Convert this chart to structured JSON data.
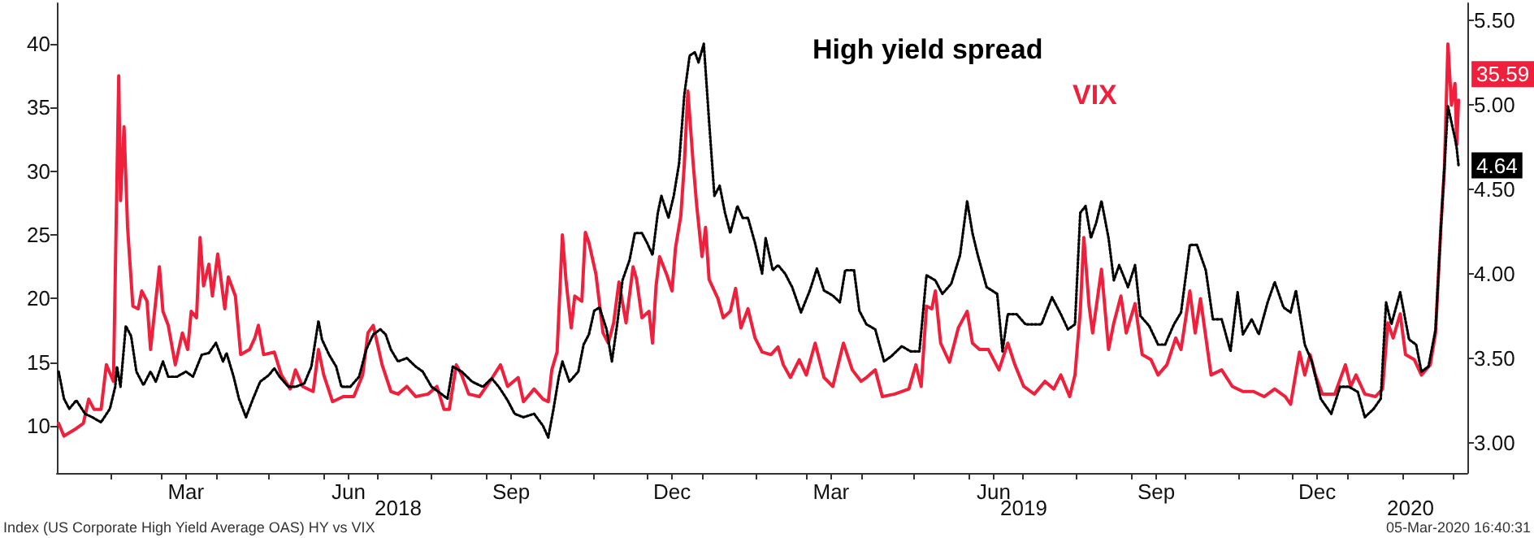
{
  "chart_data": {
    "type": "line",
    "xlim": [
      "2018-01-01",
      "2020-03-09"
    ],
    "xticks": [
      {
        "value": "2018-02-01",
        "label": null
      },
      {
        "value": "2018-03-01",
        "label": null
      },
      {
        "value": "2018-03-15",
        "label": "Mar"
      },
      {
        "value": "2018-04-01",
        "label": null
      },
      {
        "value": "2018-05-01",
        "label": null
      },
      {
        "value": "2018-06-01",
        "label": null
      },
      {
        "value": "2018-06-15",
        "label": "Jun"
      },
      {
        "value": "2018-07-01",
        "label": null
      },
      {
        "value": "2018-08-01",
        "label": null
      },
      {
        "value": "2018-09-01",
        "label": null
      },
      {
        "value": "2018-09-15",
        "label": "Sep"
      },
      {
        "value": "2018-10-01",
        "label": null
      },
      {
        "value": "2018-11-01",
        "label": null
      },
      {
        "value": "2018-12-01",
        "label": null
      },
      {
        "value": "2018-12-15",
        "label": "Dec"
      },
      {
        "value": "2019-01-01",
        "label": null
      },
      {
        "value": "2019-02-01",
        "label": null
      },
      {
        "value": "2019-03-01",
        "label": null
      },
      {
        "value": "2019-03-15",
        "label": "Mar"
      },
      {
        "value": "2019-04-01",
        "label": null
      },
      {
        "value": "2019-05-01",
        "label": null
      },
      {
        "value": "2019-06-01",
        "label": null
      },
      {
        "value": "2019-06-15",
        "label": "Jun"
      },
      {
        "value": "2019-07-01",
        "label": null
      },
      {
        "value": "2019-08-01",
        "label": null
      },
      {
        "value": "2019-09-01",
        "label": null
      },
      {
        "value": "2019-09-15",
        "label": "Sep"
      },
      {
        "value": "2019-10-01",
        "label": null
      },
      {
        "value": "2019-11-01",
        "label": null
      },
      {
        "value": "2019-12-01",
        "label": null
      },
      {
        "value": "2019-12-15",
        "label": "Dec"
      },
      {
        "value": "2020-01-01",
        "label": null
      },
      {
        "value": "2020-02-01",
        "label": null
      },
      {
        "value": "2020-03-01",
        "label": null
      }
    ],
    "ylim": [
      6.3,
      43.2
    ],
    "yticks": [
      10,
      15,
      20,
      25,
      30,
      35,
      40
    ],
    "y2lim": [
      2.82,
      5.6
    ],
    "y2ticks": [
      {
        "value": 3,
        "label": "3.00"
      },
      {
        "value": 3.5,
        "label": "3.50"
      },
      {
        "value": 4,
        "label": "4.00"
      },
      {
        "value": 4.5,
        "label": "4.50"
      },
      {
        "value": 5,
        "label": "5.00"
      },
      {
        "value": 5.5,
        "label": "5.50"
      }
    ],
    "marker": "none",
    "annotations": [
      "2018",
      "2019",
      "2020",
      "Index (US Corporate High Yield Average OAS) HY vs VIX",
      "05-Mar-2020 16:40:31"
    ],
    "series": [
      {
        "name": "High yield spread",
        "color": "#000000",
        "axis": "y2",
        "line_style": "dotted",
        "x": [
          "2018-01-02",
          "2018-01-05",
          "2018-01-08",
          "2018-01-12",
          "2018-01-17",
          "2018-01-21",
          "2018-01-26",
          "2018-01-31",
          "2018-02-03",
          "2018-02-04",
          "2018-02-06",
          "2018-02-09",
          "2018-02-12",
          "2018-02-15",
          "2018-02-19",
          "2018-02-23",
          "2018-02-26",
          "2018-03-02",
          "2018-03-05",
          "2018-03-10",
          "2018-03-15",
          "2018-03-19",
          "2018-03-24",
          "2018-03-28",
          "2018-04-01",
          "2018-04-05",
          "2018-04-07",
          "2018-04-11",
          "2018-04-14",
          "2018-04-18",
          "2018-04-22",
          "2018-04-26",
          "2018-05-01",
          "2018-05-04",
          "2018-05-07",
          "2018-05-12",
          "2018-05-16",
          "2018-05-21",
          "2018-05-25",
          "2018-05-29",
          "2018-05-31",
          "2018-06-04",
          "2018-06-08",
          "2018-06-11",
          "2018-06-16",
          "2018-06-21",
          "2018-06-25",
          "2018-06-29",
          "2018-07-03",
          "2018-07-06",
          "2018-07-09",
          "2018-07-13",
          "2018-07-18",
          "2018-07-23",
          "2018-07-27",
          "2018-08-01",
          "2018-08-05",
          "2018-08-10",
          "2018-08-13",
          "2018-08-18",
          "2018-08-24",
          "2018-08-30",
          "2018-09-04",
          "2018-09-08",
          "2018-09-13",
          "2018-09-17",
          "2018-09-22",
          "2018-09-28",
          "2018-10-03",
          "2018-10-06",
          "2018-10-09",
          "2018-10-12",
          "2018-10-14",
          "2018-10-18",
          "2018-10-23",
          "2018-10-26",
          "2018-10-29",
          "2018-11-01",
          "2018-11-04",
          "2018-11-08",
          "2018-11-11",
          "2018-11-14",
          "2018-11-17",
          "2018-11-21",
          "2018-11-24",
          "2018-11-28",
          "2018-12-01",
          "2018-12-04",
          "2018-12-07",
          "2018-12-09",
          "2018-12-13",
          "2018-12-16",
          "2018-12-19",
          "2018-12-22",
          "2018-12-25",
          "2018-12-28",
          "2018-12-30",
          "2019-01-02",
          "2019-01-05",
          "2019-01-08",
          "2019-01-11",
          "2019-01-14",
          "2019-01-17",
          "2019-01-21",
          "2019-01-24",
          "2019-01-27",
          "2019-01-31",
          "2019-02-04",
          "2019-02-06",
          "2019-02-10",
          "2019-02-13",
          "2019-02-17",
          "2019-02-21",
          "2019-02-26",
          "2019-03-03",
          "2019-03-07",
          "2019-03-11",
          "2019-03-16",
          "2019-03-20",
          "2019-03-23",
          "2019-03-28",
          "2019-03-31",
          "2019-04-04",
          "2019-04-09",
          "2019-04-14",
          "2019-04-18",
          "2019-04-24",
          "2019-04-29",
          "2019-05-04",
          "2019-05-08",
          "2019-05-13",
          "2019-05-17",
          "2019-05-22",
          "2019-05-27",
          "2019-05-31",
          "2019-06-03",
          "2019-06-06",
          "2019-06-11",
          "2019-06-17",
          "2019-06-20",
          "2019-06-23",
          "2019-06-28",
          "2019-07-03",
          "2019-07-07",
          "2019-07-12",
          "2019-07-18",
          "2019-07-23",
          "2019-07-27",
          "2019-07-31",
          "2019-08-03",
          "2019-08-06",
          "2019-08-09",
          "2019-08-12",
          "2019-08-15",
          "2019-08-19",
          "2019-08-22",
          "2019-08-25",
          "2019-08-30",
          "2019-09-03",
          "2019-09-06",
          "2019-09-11",
          "2019-09-16",
          "2019-09-20",
          "2019-09-25",
          "2019-09-29",
          "2019-10-04",
          "2019-10-08",
          "2019-10-13",
          "2019-10-17",
          "2019-10-22",
          "2019-10-27",
          "2019-10-31",
          "2019-11-03",
          "2019-11-08",
          "2019-11-12",
          "2019-11-17",
          "2019-11-21",
          "2019-11-26",
          "2019-11-30",
          "2019-12-03",
          "2019-12-08",
          "2019-12-12",
          "2019-12-17",
          "2019-12-23",
          "2019-12-28",
          "2020-01-02",
          "2020-01-07",
          "2020-01-11",
          "2020-01-16",
          "2020-01-20",
          "2020-01-23",
          "2020-01-26",
          "2020-01-31",
          "2020-02-05",
          "2020-02-09",
          "2020-02-12",
          "2020-02-16",
          "2020-02-20",
          "2020-02-23",
          "2020-02-27",
          "2020-03-02",
          "2020-03-03",
          "2020-03-04"
        ],
        "values": [
          3.42,
          3.26,
          3.2,
          3.25,
          3.17,
          3.15,
          3.12,
          3.2,
          3.33,
          3.45,
          3.33,
          3.69,
          3.63,
          3.42,
          3.34,
          3.42,
          3.36,
          3.48,
          3.39,
          3.39,
          3.42,
          3.39,
          3.52,
          3.53,
          3.59,
          3.48,
          3.53,
          3.39,
          3.26,
          3.15,
          3.26,
          3.36,
          3.4,
          3.44,
          3.39,
          3.33,
          3.33,
          3.35,
          3.45,
          3.72,
          3.61,
          3.52,
          3.45,
          3.33,
          3.33,
          3.39,
          3.55,
          3.64,
          3.67,
          3.64,
          3.55,
          3.48,
          3.5,
          3.45,
          3.42,
          3.33,
          3.3,
          3.26,
          3.45,
          3.42,
          3.36,
          3.33,
          3.38,
          3.33,
          3.25,
          3.17,
          3.15,
          3.17,
          3.1,
          3.03,
          3.2,
          3.39,
          3.48,
          3.36,
          3.42,
          3.58,
          3.64,
          3.78,
          3.8,
          3.67,
          3.48,
          3.7,
          3.96,
          4.08,
          4.24,
          4.24,
          4.18,
          4.11,
          4.36,
          4.46,
          4.33,
          4.46,
          4.65,
          5.06,
          5.29,
          5.31,
          5.25,
          5.36,
          4.9,
          4.46,
          4.52,
          4.36,
          4.24,
          4.4,
          4.33,
          4.33,
          4.18,
          4.0,
          4.21,
          4.02,
          4.05,
          4.0,
          3.92,
          3.77,
          3.9,
          4.03,
          3.9,
          3.87,
          3.83,
          4.02,
          4.02,
          3.78,
          3.7,
          3.67,
          3.48,
          3.51,
          3.57,
          3.54,
          3.54,
          3.99,
          3.96,
          3.88,
          3.94,
          4.11,
          4.43,
          4.24,
          4.11,
          3.92,
          3.88,
          3.54,
          3.76,
          3.76,
          3.7,
          3.7,
          3.7,
          3.86,
          3.76,
          3.67,
          3.7,
          4.36,
          4.4,
          4.21,
          4.3,
          4.43,
          4.21,
          3.96,
          4.05,
          3.92,
          4.05,
          3.75,
          3.69,
          3.58,
          3.58,
          3.7,
          3.77,
          4.17,
          4.17,
          4.02,
          3.73,
          3.73,
          3.54,
          3.89,
          3.64,
          3.73,
          3.64,
          3.83,
          3.95,
          3.8,
          3.77,
          3.9,
          3.58,
          3.48,
          3.26,
          3.17,
          3.33,
          3.33,
          3.3,
          3.15,
          3.2,
          3.26,
          3.83,
          3.7,
          3.89,
          3.61,
          3.58,
          3.42,
          3.45,
          3.67,
          4.27,
          4.99,
          4.8,
          4.74,
          4.64
        ],
        "value_labels": [
          null,
          null,
          null,
          null,
          null,
          null,
          null,
          null,
          null,
          null,
          null,
          null,
          null,
          null,
          null,
          null,
          null,
          null,
          null,
          null,
          null,
          null,
          null,
          null,
          null,
          null,
          null,
          null,
          null,
          null,
          null,
          null,
          null,
          null,
          null,
          null,
          null,
          null,
          null,
          null,
          null,
          null,
          null,
          null,
          null,
          null,
          null,
          null,
          null,
          null,
          null,
          null,
          null,
          null,
          null,
          null,
          null,
          null,
          null,
          null,
          null,
          null,
          null,
          null,
          null,
          null,
          null,
          null,
          null,
          null,
          null,
          null,
          null,
          null,
          null,
          null,
          null,
          null,
          null,
          null,
          null,
          null,
          null,
          null,
          null,
          null,
          null,
          null,
          null,
          null,
          null,
          null,
          null,
          null,
          null,
          null,
          null,
          null,
          null,
          null,
          null,
          null,
          null,
          null,
          null,
          null,
          null,
          null,
          null,
          null,
          null,
          null,
          null,
          null,
          null,
          null,
          null,
          null,
          null,
          null,
          null,
          null,
          null,
          null,
          null,
          null,
          null,
          null,
          null,
          null,
          null,
          null,
          null,
          null,
          null,
          null,
          null,
          null,
          null,
          null,
          null,
          null,
          null,
          null,
          null,
          null,
          null,
          null,
          null,
          null,
          null,
          null,
          null,
          null,
          null,
          null,
          null,
          null,
          null,
          null,
          null,
          null,
          null,
          null,
          null,
          null,
          null,
          null,
          null,
          null,
          null,
          null,
          null,
          null,
          null,
          null,
          null,
          null,
          null,
          null,
          null,
          null,
          null,
          null,
          null,
          null,
          null,
          null,
          null,
          null,
          null,
          null,
          null,
          null,
          null,
          null,
          null,
          null,
          null,
          null,
          null,
          null,
          "4.64"
        ]
      },
      {
        "name": "VIX",
        "color": "#f0203c",
        "axis": "y",
        "line_style": "solid",
        "x": [
          "2018-01-02",
          "2018-01-05",
          "2018-01-12",
          "2018-01-16",
          "2018-01-19",
          "2018-01-22",
          "2018-01-26",
          "2018-01-29",
          "2018-02-02",
          "2018-02-05",
          "2018-02-06",
          "2018-02-08",
          "2018-02-10",
          "2018-02-13",
          "2018-02-16",
          "2018-02-18",
          "2018-02-21",
          "2018-02-23",
          "2018-02-28",
          "2018-03-02",
          "2018-03-05",
          "2018-03-09",
          "2018-03-13",
          "2018-03-16",
          "2018-03-18",
          "2018-03-21",
          "2018-03-23",
          "2018-03-25",
          "2018-03-28",
          "2018-03-30",
          "2018-04-02",
          "2018-04-06",
          "2018-04-08",
          "2018-04-12",
          "2018-04-15",
          "2018-04-20",
          "2018-04-23",
          "2018-04-25",
          "2018-04-28",
          "2018-05-04",
          "2018-05-08",
          "2018-05-13",
          "2018-05-16",
          "2018-05-20",
          "2018-05-26",
          "2018-05-29",
          "2018-06-01",
          "2018-06-06",
          "2018-06-12",
          "2018-06-18",
          "2018-06-23",
          "2018-06-26",
          "2018-06-29",
          "2018-07-04",
          "2018-07-09",
          "2018-07-13",
          "2018-07-18",
          "2018-07-23",
          "2018-07-30",
          "2018-08-04",
          "2018-08-08",
          "2018-08-11",
          "2018-08-15",
          "2018-08-18",
          "2018-08-22",
          "2018-08-28",
          "2018-09-03",
          "2018-09-09",
          "2018-09-13",
          "2018-09-19",
          "2018-09-22",
          "2018-09-28",
          "2018-10-03",
          "2018-10-06",
          "2018-10-08",
          "2018-10-11",
          "2018-10-14",
          "2018-10-16",
          "2018-10-19",
          "2018-10-21",
          "2018-10-25",
          "2018-10-27",
          "2018-10-29",
          "2018-11-02",
          "2018-11-06",
          "2018-11-09",
          "2018-11-12",
          "2018-11-15",
          "2018-11-19",
          "2018-11-23",
          "2018-11-25",
          "2018-11-28",
          "2018-12-02",
          "2018-12-04",
          "2018-12-06",
          "2018-12-08",
          "2018-12-12",
          "2018-12-15",
          "2018-12-17",
          "2018-12-20",
          "2018-12-22",
          "2018-12-24",
          "2018-12-27",
          "2018-12-29",
          "2019-01-01",
          "2019-01-03",
          "2019-01-05",
          "2019-01-10",
          "2019-01-13",
          "2019-01-17",
          "2019-01-20",
          "2019-01-23",
          "2019-01-27",
          "2019-01-31",
          "2019-02-04",
          "2019-02-09",
          "2019-02-13",
          "2019-02-16",
          "2019-02-20",
          "2019-02-25",
          "2019-03-01",
          "2019-03-06",
          "2019-03-11",
          "2019-03-16",
          "2019-03-22",
          "2019-03-27",
          "2019-04-01",
          "2019-04-04",
          "2019-04-09",
          "2019-04-13",
          "2019-04-20",
          "2019-04-28",
          "2019-05-02",
          "2019-05-05",
          "2019-05-08",
          "2019-05-11",
          "2019-05-13",
          "2019-05-16",
          "2019-05-21",
          "2019-05-26",
          "2019-05-31",
          "2019-06-03",
          "2019-06-07",
          "2019-06-12",
          "2019-06-18",
          "2019-06-23",
          "2019-06-27",
          "2019-07-02",
          "2019-07-08",
          "2019-07-14",
          "2019-07-19",
          "2019-07-23",
          "2019-07-28",
          "2019-07-31",
          "2019-08-03",
          "2019-08-05",
          "2019-08-08",
          "2019-08-10",
          "2019-08-15",
          "2019-08-19",
          "2019-08-22",
          "2019-08-26",
          "2019-08-29",
          "2019-09-03",
          "2019-09-07",
          "2019-09-12",
          "2019-09-16",
          "2019-09-21",
          "2019-09-26",
          "2019-09-29",
          "2019-10-04",
          "2019-10-07",
          "2019-10-10",
          "2019-10-16",
          "2019-10-22",
          "2019-10-28",
          "2019-11-03",
          "2019-11-09",
          "2019-11-15",
          "2019-11-21",
          "2019-11-27",
          "2019-11-30",
          "2019-12-05",
          "2019-12-08",
          "2019-12-11",
          "2019-12-14",
          "2019-12-18",
          "2019-12-25",
          "2019-12-31",
          "2020-01-03",
          "2020-01-06",
          "2020-01-11",
          "2020-01-17",
          "2020-01-21",
          "2020-01-24",
          "2020-01-27",
          "2020-01-31",
          "2020-02-03",
          "2020-02-08",
          "2020-02-12",
          "2020-02-17",
          "2020-02-20",
          "2020-02-23",
          "2020-02-25",
          "2020-02-27",
          "2020-02-29",
          "2020-03-02",
          "2020-03-03",
          "2020-03-04"
        ],
        "values": [
          10.2,
          9.2,
          9.8,
          10.2,
          12.1,
          11.3,
          11.3,
          14.8,
          13.5,
          37.5,
          27.7,
          33.5,
          25.6,
          19.4,
          19.2,
          20.6,
          19.8,
          16,
          22.5,
          19,
          17.9,
          14.8,
          17.3,
          16,
          19,
          18.5,
          24.8,
          21,
          22.7,
          20.2,
          23.5,
          19.2,
          21.7,
          20.2,
          15.6,
          16,
          16.9,
          17.9,
          15.6,
          15.8,
          14,
          12.9,
          14.4,
          13.1,
          12.7,
          16,
          14,
          11.9,
          12.3,
          12.3,
          14,
          17.3,
          17.9,
          14.8,
          12.7,
          12.5,
          13.1,
          12.3,
          12.5,
          13.1,
          11.3,
          11.3,
          14.8,
          14,
          12.5,
          12.3,
          13.5,
          14.8,
          13.1,
          13.8,
          11.9,
          12.9,
          12.1,
          11.9,
          14.4,
          15.8,
          25,
          21.5,
          17.7,
          20.2,
          19.8,
          25.2,
          24.4,
          21.9,
          17.3,
          16.5,
          18.1,
          21.3,
          18.1,
          22.5,
          21.5,
          18.5,
          19,
          16.5,
          21,
          23.3,
          21.9,
          20.6,
          24,
          26.5,
          30.6,
          36.3,
          30.6,
          27.3,
          23.3,
          25.6,
          21.5,
          20,
          18.5,
          19,
          20.8,
          17.7,
          19.2,
          16.9,
          15.8,
          15.6,
          16.2,
          14.8,
          13.8,
          15.2,
          14,
          16.5,
          13.8,
          13.1,
          16.5,
          14.4,
          13.5,
          13.8,
          14.4,
          12.3,
          12.5,
          12.9,
          14.8,
          13.1,
          19.4,
          19.2,
          20.6,
          16.5,
          15,
          17.7,
          19,
          16.5,
          16,
          16,
          14.4,
          16.5,
          14.8,
          13.1,
          12.5,
          13.5,
          12.9,
          14,
          12.3,
          14,
          19,
          24.8,
          19.4,
          17.3,
          22.3,
          16,
          18.1,
          20.2,
          17.3,
          19.6,
          15.6,
          15.2,
          14,
          14.8,
          16.9,
          16,
          20.6,
          17.3,
          20,
          14,
          14.4,
          13.1,
          12.7,
          12.7,
          12.3,
          12.9,
          12.3,
          11.7,
          15.8,
          14,
          15.6,
          14,
          12.5,
          12.5,
          14.8,
          13.1,
          14,
          12.5,
          12.3,
          12.9,
          18.1,
          16.9,
          18.8,
          15.6,
          15.2,
          14,
          14.8,
          17.3,
          25.6,
          30.2,
          40,
          35.2,
          36.9,
          32.1,
          35.59
        ],
        "value_labels": [
          null,
          null,
          null,
          null,
          null,
          null,
          null,
          null,
          null,
          null,
          null,
          null,
          null,
          null,
          null,
          null,
          null,
          null,
          null,
          null,
          null,
          null,
          null,
          null,
          null,
          null,
          null,
          null,
          null,
          null,
          null,
          null,
          null,
          null,
          null,
          null,
          null,
          null,
          null,
          null,
          null,
          null,
          null,
          null,
          null,
          null,
          null,
          null,
          null,
          null,
          null,
          null,
          null,
          null,
          null,
          null,
          null,
          null,
          null,
          null,
          null,
          null,
          null,
          null,
          null,
          null,
          null,
          null,
          null,
          null,
          null,
          null,
          null,
          null,
          null,
          null,
          null,
          null,
          null,
          null,
          null,
          null,
          null,
          null,
          null,
          null,
          null,
          null,
          null,
          null,
          null,
          null,
          null,
          null,
          null,
          null,
          null,
          null,
          null,
          null,
          null,
          null,
          null,
          null,
          null,
          null,
          null,
          null,
          null,
          null,
          null,
          null,
          null,
          null,
          null,
          null,
          null,
          null,
          null,
          null,
          null,
          null,
          null,
          null,
          null,
          null,
          null,
          null,
          null,
          null,
          null,
          null,
          null,
          null,
          null,
          null,
          null,
          null,
          null,
          null,
          null,
          null,
          null,
          null,
          null,
          null,
          null,
          null,
          null,
          null,
          null,
          null,
          null,
          null,
          null,
          null,
          null,
          null,
          null,
          null,
          null,
          null,
          null,
          null,
          null,
          null,
          null,
          null,
          null,
          null,
          null,
          null,
          null,
          null,
          null,
          null,
          null,
          null,
          null,
          null,
          null,
          null,
          null,
          null,
          null,
          null,
          null,
          null,
          null,
          null,
          null,
          null,
          null,
          null,
          null,
          null,
          null,
          null,
          null,
          null,
          null,
          null,
          null,
          null,
          null,
          null,
          null,
          null,
          "35.59"
        ]
      }
    ]
  }
}
